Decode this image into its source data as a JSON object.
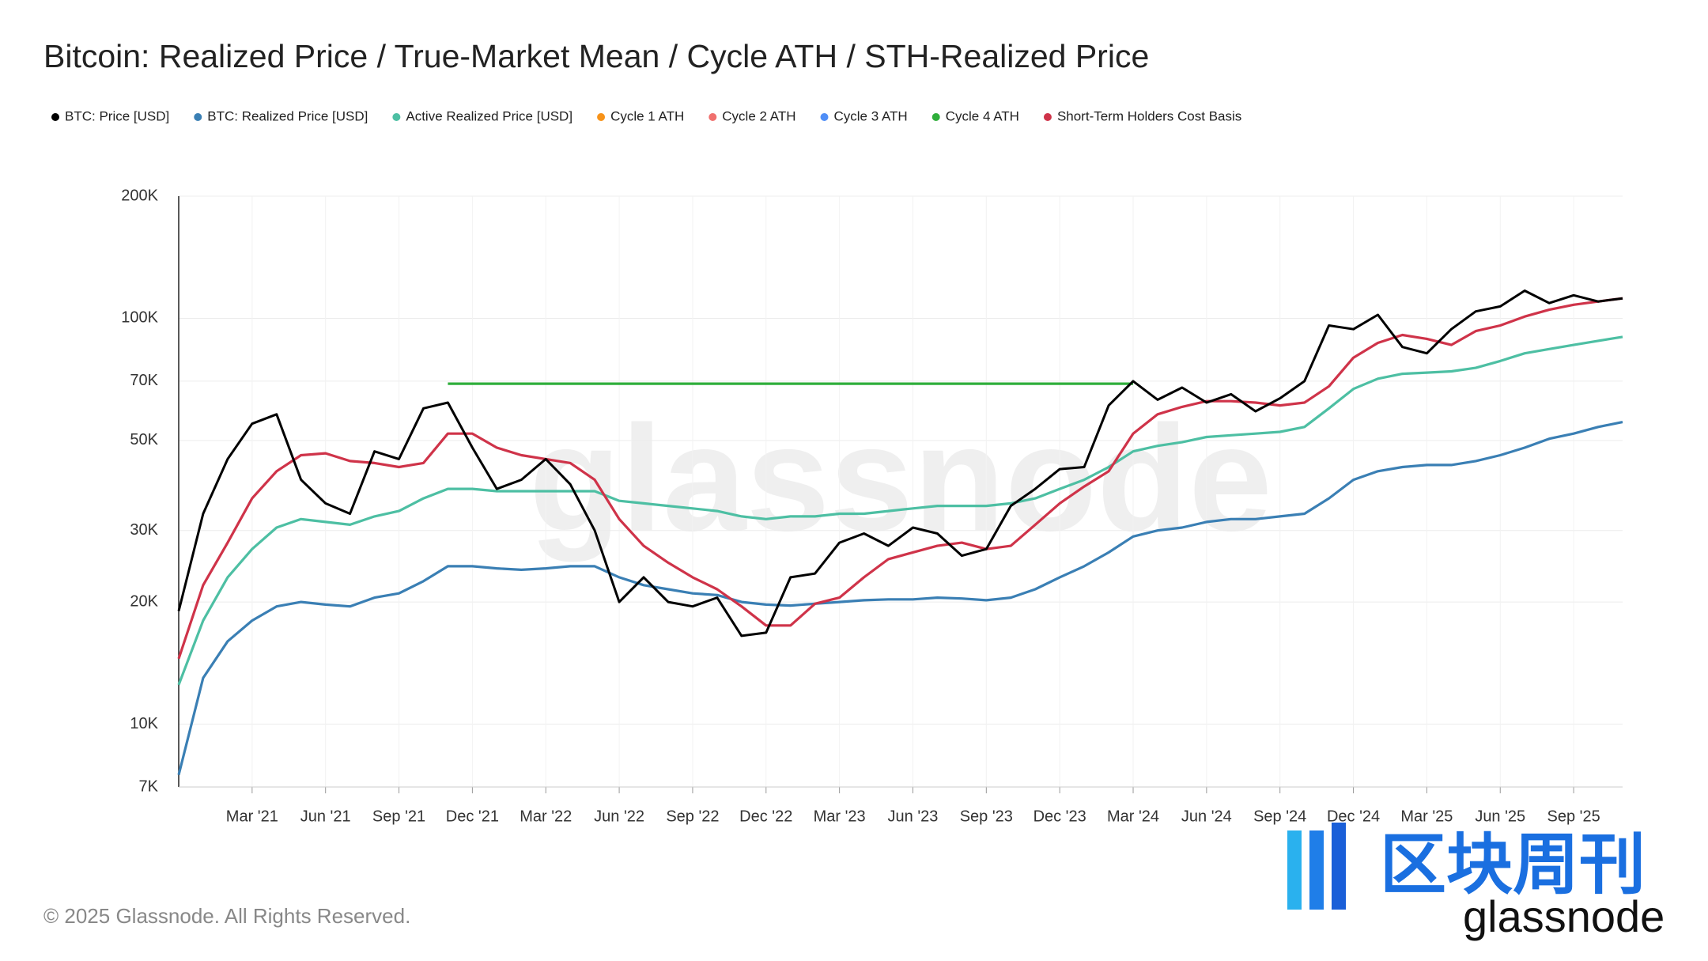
{
  "chart_data": {
    "type": "line",
    "title": "Bitcoin: Realized Price / True-Market Mean / Cycle ATH / STH-Realized Price",
    "watermark": "glassnode",
    "footer": "© 2025 Glassnode. All Rights Reserved.",
    "logo_text": "区块周刊",
    "logo_subtext": "glassnode",
    "log_scale": true,
    "legend": "top-left",
    "x": [
      "2020-12",
      "2021-01",
      "2021-02",
      "2021-03",
      "2021-04",
      "2021-05",
      "2021-06",
      "2021-07",
      "2021-08",
      "2021-09",
      "2021-10",
      "2021-11",
      "2021-12",
      "2022-01",
      "2022-02",
      "2022-03",
      "2022-04",
      "2022-05",
      "2022-06",
      "2022-07",
      "2022-08",
      "2022-09",
      "2022-10",
      "2022-11",
      "2022-12",
      "2023-01",
      "2023-02",
      "2023-03",
      "2023-04",
      "2023-05",
      "2023-06",
      "2023-07",
      "2023-08",
      "2023-09",
      "2023-10",
      "2023-11",
      "2023-12",
      "2024-01",
      "2024-02",
      "2024-03",
      "2024-04",
      "2024-05",
      "2024-06",
      "2024-07",
      "2024-08",
      "2024-09",
      "2024-10",
      "2024-11",
      "2024-12",
      "2025-01",
      "2025-02",
      "2025-03",
      "2025-04",
      "2025-05",
      "2025-06",
      "2025-07",
      "2025-08",
      "2025-09",
      "2025-10",
      "2025-11"
    ],
    "xlim": [
      "2020-12",
      "2025-11"
    ],
    "xticks": [
      {
        "value": "2021-03",
        "label": "Mar '21"
      },
      {
        "value": "2021-06",
        "label": "Jun '21"
      },
      {
        "value": "2021-09",
        "label": "Sep '21"
      },
      {
        "value": "2021-12",
        "label": "Dec '21"
      },
      {
        "value": "2022-03",
        "label": "Mar '22"
      },
      {
        "value": "2022-06",
        "label": "Jun '22"
      },
      {
        "value": "2022-09",
        "label": "Sep '22"
      },
      {
        "value": "2022-12",
        "label": "Dec '22"
      },
      {
        "value": "2023-03",
        "label": "Mar '23"
      },
      {
        "value": "2023-06",
        "label": "Jun '23"
      },
      {
        "value": "2023-09",
        "label": "Sep '23"
      },
      {
        "value": "2023-12",
        "label": "Dec '23"
      },
      {
        "value": "2024-03",
        "label": "Mar '24"
      },
      {
        "value": "2024-06",
        "label": "Jun '24"
      },
      {
        "value": "2024-09",
        "label": "Sep '24"
      },
      {
        "value": "2024-12",
        "label": "Dec '24"
      },
      {
        "value": "2025-03",
        "label": "Mar '25"
      },
      {
        "value": "2025-06",
        "label": "Jun '25"
      },
      {
        "value": "2025-09",
        "label": "Sep '25"
      }
    ],
    "ylim": [
      7000,
      200000
    ],
    "yticks": [
      {
        "value": 7000,
        "label": "7K"
      },
      {
        "value": 10000,
        "label": "10K"
      },
      {
        "value": 20000,
        "label": "20K"
      },
      {
        "value": 30000,
        "label": "30K"
      },
      {
        "value": 50000,
        "label": "50K"
      },
      {
        "value": 70000,
        "label": "70K"
      },
      {
        "value": 100000,
        "label": "100K"
      },
      {
        "value": 200000,
        "label": "200K"
      }
    ],
    "grid": true,
    "series": [
      {
        "name": "BTC: Price [USD]",
        "color": "#000000",
        "values": [
          19000,
          33000,
          45000,
          55000,
          58000,
          40000,
          35000,
          33000,
          47000,
          45000,
          60000,
          62000,
          48000,
          38000,
          40000,
          45000,
          39000,
          30000,
          20000,
          23000,
          20000,
          19500,
          20500,
          16500,
          16800,
          23000,
          23500,
          28000,
          29500,
          27500,
          30500,
          29500,
          26000,
          27000,
          34500,
          38000,
          42500,
          43000,
          61000,
          70000,
          63000,
          67500,
          62000,
          65000,
          59000,
          63500,
          70000,
          96000,
          94000,
          102000,
          85000,
          82000,
          94000,
          104000,
          107000,
          117000,
          109000,
          114000,
          110000,
          112000
        ]
      },
      {
        "name": "BTC: Realized Price [USD]",
        "color": "#3a7fb4",
        "values": [
          7500,
          13000,
          16000,
          18000,
          19500,
          20000,
          19700,
          19500,
          20500,
          21000,
          22500,
          24500,
          24500,
          24200,
          24000,
          24200,
          24500,
          24500,
          23000,
          22000,
          21500,
          21000,
          20800,
          20000,
          19700,
          19600,
          19800,
          20000,
          20200,
          20300,
          20300,
          20500,
          20400,
          20200,
          20500,
          21500,
          23000,
          24500,
          26500,
          29000,
          30000,
          30500,
          31500,
          32000,
          32000,
          32500,
          33000,
          36000,
          40000,
          42000,
          43000,
          43500,
          43500,
          44500,
          46000,
          48000,
          50500,
          52000,
          54000,
          55500
        ]
      },
      {
        "name": "Active Realized Price [USD]",
        "color": "#4dbfa3",
        "values": [
          12500,
          18000,
          23000,
          27000,
          30500,
          32000,
          31500,
          31000,
          32500,
          33500,
          36000,
          38000,
          38000,
          37500,
          37500,
          37500,
          37500,
          37500,
          35500,
          35000,
          34500,
          34000,
          33500,
          32500,
          32000,
          32500,
          32500,
          33000,
          33000,
          33500,
          34000,
          34500,
          34500,
          34500,
          35000,
          36000,
          38000,
          40000,
          43000,
          47000,
          48500,
          49500,
          51000,
          51500,
          52000,
          52500,
          54000,
          60000,
          67000,
          71000,
          73000,
          73500,
          74000,
          75500,
          78500,
          82000,
          84000,
          86000,
          88000,
          90000
        ]
      },
      {
        "name": "Cycle 1 ATH",
        "color": "#f7931a",
        "values": [
          null,
          null,
          null,
          null,
          null,
          null,
          null,
          null,
          null,
          null,
          null,
          null,
          null,
          null,
          null,
          null,
          null,
          null,
          null,
          null,
          null,
          null,
          null,
          null,
          null,
          null,
          null,
          null,
          null,
          null,
          null,
          null,
          null,
          null,
          null,
          null,
          null,
          null,
          null,
          null,
          null,
          null,
          null,
          null,
          null,
          null,
          null,
          null,
          null,
          null,
          null,
          null,
          null,
          null,
          null,
          null,
          null,
          null,
          null,
          null
        ]
      },
      {
        "name": "Cycle 2 ATH",
        "color": "#f0706e",
        "values": [
          null,
          null,
          null,
          null,
          null,
          null,
          null,
          null,
          null,
          null,
          null,
          null,
          null,
          null,
          null,
          null,
          null,
          null,
          null,
          null,
          null,
          null,
          null,
          null,
          null,
          null,
          null,
          null,
          null,
          null,
          null,
          null,
          null,
          null,
          null,
          null,
          null,
          null,
          null,
          null,
          null,
          null,
          null,
          null,
          null,
          null,
          null,
          null,
          null,
          null,
          null,
          null,
          null,
          null,
          null,
          null,
          null,
          null,
          null,
          null
        ]
      },
      {
        "name": "Cycle 3 ATH",
        "color": "#4f8ef7",
        "values": [
          null,
          null,
          null,
          null,
          null,
          null,
          null,
          null,
          null,
          null,
          null,
          null,
          null,
          null,
          null,
          null,
          null,
          null,
          null,
          null,
          null,
          null,
          null,
          null,
          null,
          null,
          null,
          null,
          null,
          null,
          null,
          null,
          null,
          null,
          null,
          null,
          null,
          null,
          null,
          null,
          null,
          null,
          null,
          null,
          null,
          null,
          null,
          null,
          null,
          null,
          null,
          null,
          null,
          null,
          null,
          null,
          null,
          null,
          null,
          null
        ]
      },
      {
        "name": "Cycle 4 ATH",
        "color": "#2fae3b",
        "values": [
          null,
          null,
          null,
          null,
          null,
          null,
          null,
          null,
          null,
          null,
          null,
          69000,
          69000,
          69000,
          69000,
          69000,
          69000,
          69000,
          69000,
          69000,
          69000,
          69000,
          69000,
          69000,
          69000,
          69000,
          69000,
          69000,
          69000,
          69000,
          69000,
          69000,
          69000,
          69000,
          69000,
          69000,
          69000,
          69000,
          69000,
          69000,
          null,
          null,
          null,
          null,
          null,
          null,
          null,
          null,
          null,
          null,
          null,
          null,
          null,
          null,
          null,
          null,
          null,
          null,
          null,
          null
        ]
      },
      {
        "name": "Short-Term Holders Cost Basis",
        "color": "#cf3349",
        "values": [
          14500,
          22000,
          28000,
          36000,
          42000,
          46000,
          46500,
          44500,
          44000,
          43000,
          44000,
          52000,
          52000,
          48000,
          46000,
          45000,
          44000,
          40000,
          32000,
          27500,
          25000,
          23000,
          21500,
          19500,
          17500,
          17500,
          19800,
          20500,
          23000,
          25500,
          26500,
          27500,
          28000,
          27000,
          27500,
          31000,
          35000,
          38500,
          42000,
          52000,
          58000,
          60500,
          62500,
          62500,
          62000,
          61000,
          62000,
          68000,
          80000,
          87000,
          91000,
          89000,
          86000,
          93000,
          96000,
          101000,
          105000,
          108000,
          110000,
          112000
        ]
      }
    ]
  }
}
